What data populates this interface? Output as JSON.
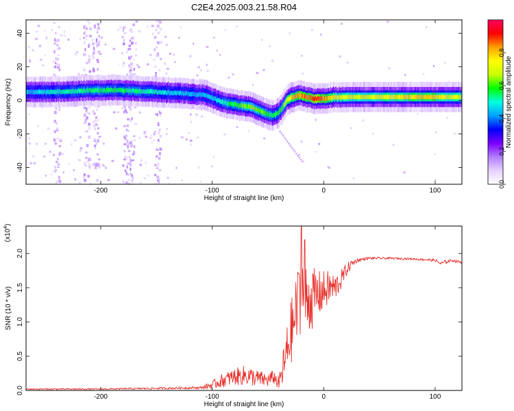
{
  "title": "C2E4.2025.003.21.58.R04",
  "chart_data": [
    {
      "type": "heatmap",
      "xlabel": "Height of straight line (km)",
      "ylabel": "Frequency (Hz)",
      "xlim": [
        -267,
        124
      ],
      "ylim": [
        -50,
        48
      ],
      "xticks": [
        -200,
        -100,
        0,
        100
      ],
      "yticks": [
        -40,
        -20,
        0,
        20,
        40
      ],
      "colorbar": {
        "label": "Normalized spectral amplitude",
        "range": [
          0,
          1
        ],
        "ticks": [
          0.0,
          0.2,
          0.4,
          0.6,
          0.8
        ],
        "tick_labels": [
          "0.0",
          "0.2",
          "0.4",
          "0.6",
          "0.8"
        ],
        "colormap": [
          "#ffffff",
          "#e6d2ff",
          "#b27cff",
          "#7a00ff",
          "#0000ff",
          "#00a0ff",
          "#00ffe0",
          "#00ff00",
          "#c8ff00",
          "#ffff00",
          "#ffa000",
          "#ff0000",
          "#ff0060"
        ]
      },
      "ridge": {
        "x": [
          -267,
          -240,
          -210,
          -180,
          -150,
          -120,
          -105,
          -95,
          -85,
          -75,
          -65,
          -55,
          -48,
          -42,
          -38,
          -33,
          -28,
          -22,
          -15,
          -8,
          0,
          10,
          30,
          60,
          90,
          124
        ],
        "freq": [
          5,
          5,
          6,
          6,
          5,
          4,
          3,
          0,
          -2,
          -3,
          -4,
          -7,
          -9,
          -8,
          -5,
          0,
          2,
          3,
          2,
          1,
          1,
          2,
          2,
          2,
          2,
          2
        ],
        "amplitude": [
          0.45,
          0.5,
          0.55,
          0.55,
          0.5,
          0.45,
          0.45,
          0.5,
          0.55,
          0.6,
          0.65,
          0.6,
          0.55,
          0.55,
          0.6,
          0.75,
          0.8,
          0.85,
          0.85,
          0.9,
          0.85,
          0.75,
          0.7,
          0.75,
          0.8,
          0.7
        ]
      },
      "vertical_noise_bands": [
        -240,
        -213,
        -205,
        -178,
        -172,
        -150
      ],
      "faint_branch": {
        "x": [
          -40,
          -20
        ],
        "freq": [
          -18,
          -36
        ]
      }
    },
    {
      "type": "line",
      "xlabel": "Height of straight line (km)",
      "ylabel": "SNR (10 * v/v)",
      "y_multiplier_label": "(x10",
      "y_multiplier_exp": "4",
      "y_multiplier_close": ")",
      "xlim": [
        -267,
        124
      ],
      "ylim": [
        0,
        2.4
      ],
      "xticks": [
        -200,
        -100,
        0,
        100
      ],
      "yticks": [
        0.0,
        0.5,
        1.0,
        1.5,
        2.0
      ],
      "ytick_labels": [
        "0.0",
        "0.5",
        "1.0",
        "1.5",
        "2.0"
      ],
      "series": [
        {
          "color": "#e8302a",
          "x": [
            -267,
            -200,
            -150,
            -110,
            -100,
            -90,
            -80,
            -70,
            -60,
            -50,
            -45,
            -40,
            -35,
            -30,
            -25,
            -20,
            -15,
            -10,
            -5,
            0,
            5,
            10,
            15,
            20,
            25,
            30,
            40,
            60,
            80,
            100,
            105,
            110,
            115,
            124
          ],
          "y": [
            0.02,
            0.02,
            0.03,
            0.04,
            0.08,
            0.15,
            0.2,
            0.22,
            0.18,
            0.15,
            0.2,
            0.1,
            0.4,
            0.8,
            1.1,
            1.5,
            1.3,
            1.35,
            1.4,
            1.45,
            1.5,
            1.5,
            1.6,
            1.75,
            1.85,
            1.9,
            1.93,
            1.93,
            1.92,
            1.9,
            1.85,
            1.88,
            1.9,
            1.87
          ],
          "noise": [
            0.01,
            0.01,
            0.015,
            0.02,
            0.06,
            0.1,
            0.12,
            0.15,
            0.12,
            0.1,
            0.1,
            0.1,
            0.35,
            0.45,
            0.55,
            0.6,
            0.5,
            0.45,
            0.35,
            0.3,
            0.25,
            0.2,
            0.15,
            0.1,
            0.06,
            0.03,
            0.02,
            0.015,
            0.015,
            0.02,
            0.03,
            0.03,
            0.02,
            0.02
          ],
          "peaks": [
            {
              "x": -20,
              "y": 2.4
            },
            {
              "x": -22,
              "y": 1.7
            },
            {
              "x": -17,
              "y": 2.2
            }
          ]
        }
      ]
    }
  ]
}
